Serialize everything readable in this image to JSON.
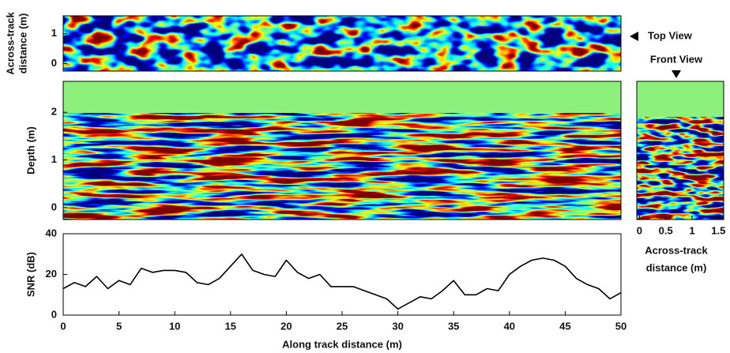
{
  "chart_data": [
    {
      "type": "heatmap",
      "ylabel": [
        "Across-track",
        "distance (m)"
      ],
      "ylim": [
        -0.25,
        1.6
      ],
      "yticks": [
        0,
        1
      ],
      "annotation": "Top View"
    },
    {
      "type": "heatmap",
      "ylabel": [
        "Depth (m)"
      ],
      "ylim": [
        -0.25,
        2.65
      ],
      "yticks": [
        0,
        1,
        2
      ]
    },
    {
      "type": "heatmap",
      "annotation": "Front View",
      "xlabel": [
        "Across-track",
        "distance (m)"
      ],
      "xlim": [
        -0.05,
        1.6
      ],
      "xticks": [
        0,
        0.5,
        1,
        1.5
      ]
    },
    {
      "type": "line",
      "ylabel": [
        "SNR (dB)"
      ],
      "xlabel": [
        "Along track distance (m)"
      ],
      "color": "#000000",
      "x": [
        0,
        1,
        2,
        3,
        4,
        5,
        6,
        7,
        8,
        9,
        10,
        11,
        12,
        13,
        14,
        15,
        16,
        17,
        18,
        19,
        20,
        21,
        22,
        23,
        24,
        25,
        26,
        27,
        28,
        29,
        30,
        31,
        32,
        33,
        34,
        35,
        36,
        37,
        38,
        39,
        40,
        41,
        42,
        43,
        44,
        45,
        46,
        47,
        48,
        49,
        50
      ],
      "values": [
        13,
        16,
        14,
        19,
        13,
        17,
        15,
        23,
        21,
        22,
        22,
        21,
        16,
        15,
        18,
        24,
        30,
        22,
        20,
        19,
        27,
        21,
        18,
        20,
        14,
        14,
        14,
        12,
        10,
        8,
        3,
        6,
        9,
        8,
        12,
        17,
        10,
        10,
        13,
        12,
        20,
        24,
        27,
        28,
        27,
        24,
        18,
        15,
        13,
        8,
        11
      ],
      "xlim": [
        0,
        50
      ],
      "xticks": [
        0,
        5,
        10,
        15,
        20,
        25,
        30,
        35,
        40,
        45,
        50
      ],
      "ylim": [
        0,
        40
      ],
      "yticks": [
        0,
        20,
        40
      ]
    }
  ]
}
